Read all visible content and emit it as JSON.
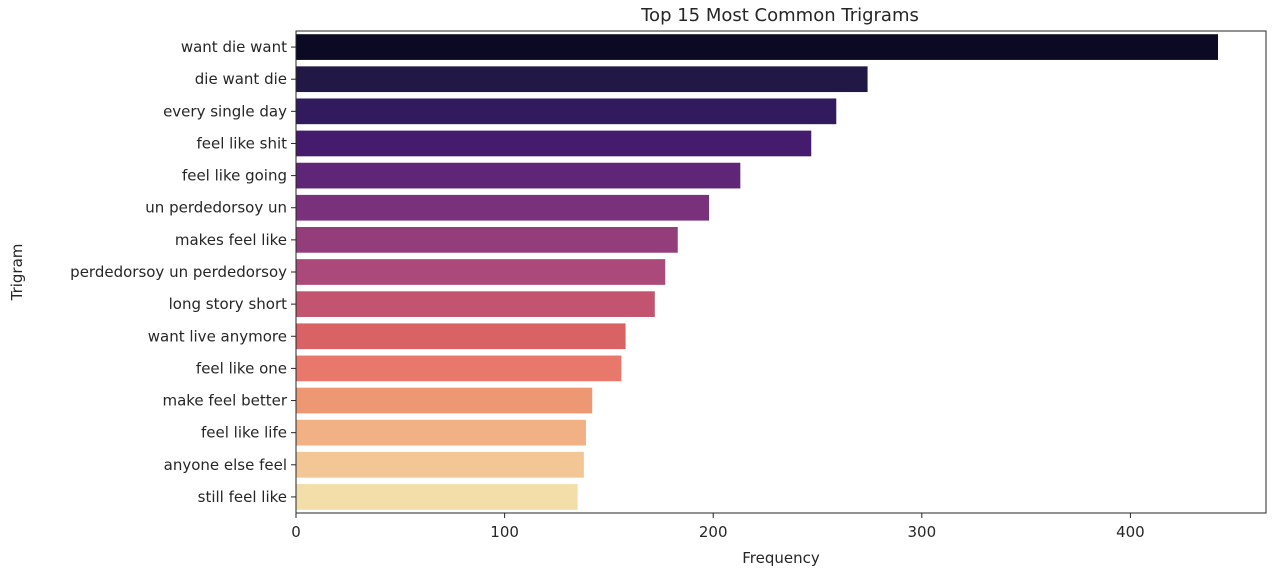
{
  "chart_data": {
    "type": "bar",
    "orientation": "horizontal",
    "title": "Top 15 Most Common Trigrams",
    "xlabel": "Frequency",
    "ylabel": "Trigram",
    "xlim": [
      0,
      465
    ],
    "xticks": [
      0,
      100,
      200,
      300,
      400
    ],
    "grid": false,
    "legend": "none",
    "colormap": "magma",
    "categories": [
      "want die want",
      "die want die",
      "every single day",
      "feel like shit",
      "feel like going",
      "un perdedorsoy un",
      "makes feel like",
      "perdedorsoy un perdedorsoy",
      "long story short",
      "want live anymore",
      "feel like one",
      "make feel better",
      "feel like life",
      "anyone else feel",
      "still feel like"
    ],
    "values": [
      442,
      274,
      259,
      247,
      213,
      198,
      183,
      177,
      172,
      158,
      156,
      142,
      139,
      138,
      135
    ],
    "colors": [
      "#0b0924",
      "#221845",
      "#321a5e",
      "#451b6e",
      "#5f2576",
      "#78317a",
      "#933d7b",
      "#ab497a",
      "#c3546f",
      "#d96265",
      "#e8786c",
      "#ee9773",
      "#f2b085",
      "#f3c795",
      "#f3dda8"
    ]
  }
}
